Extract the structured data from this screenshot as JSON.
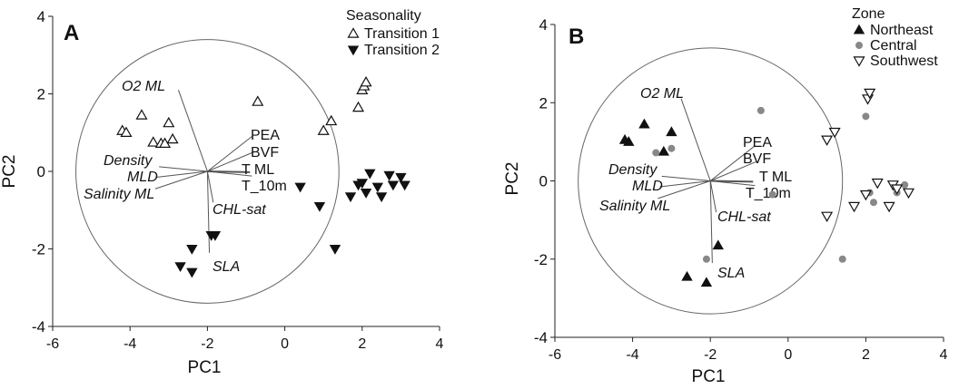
{
  "chart_data": [
    {
      "panel_label": "A",
      "type": "scatter",
      "xlabel": "PC1",
      "ylabel": "PC2",
      "xlim": [
        -6,
        4
      ],
      "ylim": [
        -4,
        4
      ],
      "xticks": [
        -6,
        -4,
        -2,
        0,
        2,
        4
      ],
      "yticks": [
        -4,
        -2,
        0,
        2,
        4
      ],
      "legend_title": "Seasonality",
      "legend_position": "top-right",
      "series": [
        {
          "name": "Transition 1",
          "marker": "triangle-up-open",
          "x": [
            -4.2,
            -4.1,
            -3.7,
            -3.4,
            -3.2,
            -3.0,
            -3.1,
            -2.9,
            -0.7,
            1.0,
            1.2,
            1.9,
            2.0,
            2.05,
            2.1
          ],
          "y": [
            1.05,
            1.0,
            1.45,
            0.75,
            0.72,
            1.25,
            0.72,
            0.83,
            1.8,
            1.05,
            1.3,
            1.65,
            2.1,
            2.2,
            2.3
          ]
        },
        {
          "name": "Transition 2",
          "marker": "triangle-down-filled",
          "x": [
            -2.7,
            -2.4,
            -2.4,
            -1.9,
            -1.8,
            0.4,
            0.9,
            1.3,
            1.7,
            1.9,
            2.0,
            2.1,
            2.2,
            2.4,
            2.5,
            2.7,
            2.8,
            3.0,
            3.1
          ],
          "y": [
            -2.45,
            -2.6,
            -2.0,
            -1.65,
            -1.65,
            -0.4,
            -0.9,
            -2.0,
            -0.65,
            -0.35,
            -0.3,
            -0.55,
            -0.05,
            -0.4,
            -0.65,
            -0.1,
            -0.35,
            -0.15,
            -0.35
          ]
        }
      ],
      "loadings": [
        {
          "label": "O2 ML",
          "italic": true,
          "x": -0.75,
          "y": 2.1
        },
        {
          "label": "PEA",
          "italic": false,
          "x": 1.15,
          "y": 0.9
        },
        {
          "label": "BVF",
          "italic": false,
          "x": 1.2,
          "y": 0.5
        },
        {
          "label": "Density",
          "italic": true,
          "x": -1.25,
          "y": 0.12
        },
        {
          "label": "T ML",
          "italic": false,
          "x": 1.1,
          "y": -0.02
        },
        {
          "label": "MLD",
          "italic": true,
          "x": -1.3,
          "y": -0.15
        },
        {
          "label": "T_10m",
          "italic": false,
          "x": 1.15,
          "y": -0.12
        },
        {
          "label": "Salinity ML",
          "italic": true,
          "x": -1.35,
          "y": -0.45
        },
        {
          "label": "CHL-sat",
          "italic": true,
          "x": 0.15,
          "y": -0.8
        },
        {
          "label": "SLA",
          "italic": true,
          "x": 0.05,
          "y": -2.1
        }
      ]
    },
    {
      "panel_label": "B",
      "type": "scatter",
      "xlabel": "PC1",
      "ylabel": "PC2",
      "xlim": [
        -6,
        4
      ],
      "ylim": [
        -4,
        4
      ],
      "xticks": [
        -6,
        -4,
        -2,
        0,
        2,
        4
      ],
      "yticks": [
        -4,
        -2,
        0,
        2,
        4
      ],
      "legend_title": "Zone",
      "legend_position": "top-right",
      "series": [
        {
          "name": "Northeast",
          "marker": "triangle-up-filled",
          "x": [
            -4.2,
            -4.1,
            -3.7,
            -3.2,
            -3.0,
            -2.6,
            -2.1,
            -1.8
          ],
          "y": [
            1.05,
            1.0,
            1.45,
            0.75,
            1.25,
            -2.45,
            -2.6,
            -1.65
          ]
        },
        {
          "name": "Central",
          "marker": "circle-filled-gray",
          "x": [
            -3.4,
            -3.0,
            -2.1,
            -0.7,
            -0.4,
            1.4,
            2.0,
            2.1,
            2.2,
            2.8,
            3.0
          ],
          "y": [
            0.72,
            0.83,
            -2.0,
            1.8,
            -0.35,
            -2.0,
            1.65,
            -0.3,
            -0.55,
            -0.3,
            -0.1
          ]
        },
        {
          "name": "Southwest",
          "marker": "triangle-down-open",
          "x": [
            1.0,
            1.0,
            1.2,
            1.7,
            2.0,
            2.05,
            2.1,
            2.3,
            2.6,
            2.7,
            2.8,
            3.1
          ],
          "y": [
            1.05,
            -0.9,
            1.25,
            -0.65,
            -0.35,
            2.1,
            2.25,
            -0.05,
            -0.65,
            -0.1,
            -0.2,
            -0.3
          ]
        }
      ],
      "loadings": [
        {
          "label": "O2 ML",
          "italic": true,
          "x": -0.75,
          "y": 2.1
        },
        {
          "label": "PEA",
          "italic": false,
          "x": 1.15,
          "y": 0.9
        },
        {
          "label": "BVF",
          "italic": false,
          "x": 1.2,
          "y": 0.5
        },
        {
          "label": "Density",
          "italic": true,
          "x": -1.25,
          "y": 0.12
        },
        {
          "label": "T ML",
          "italic": false,
          "x": 1.1,
          "y": -0.02
        },
        {
          "label": "MLD",
          "italic": true,
          "x": -1.3,
          "y": -0.15
        },
        {
          "label": "T_10m",
          "italic": false,
          "x": 1.15,
          "y": -0.12
        },
        {
          "label": "Salinity ML",
          "italic": true,
          "x": -1.35,
          "y": -0.45
        },
        {
          "label": "CHL-sat",
          "italic": true,
          "x": 0.15,
          "y": -0.8
        },
        {
          "label": "SLA",
          "italic": true,
          "x": 0.05,
          "y": -2.1
        }
      ]
    }
  ]
}
